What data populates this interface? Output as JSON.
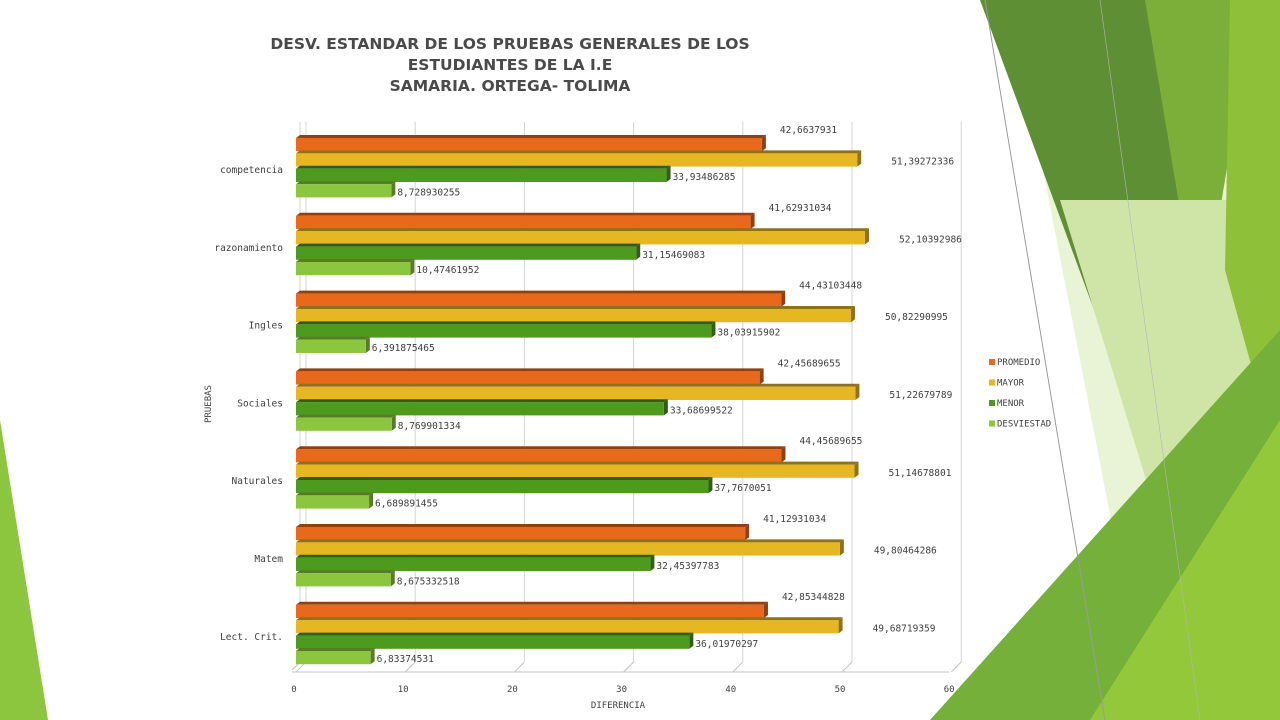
{
  "slide": {
    "title_line1": "DESV. ESTANDAR DE LOS PRUEBAS GENERALES DE LOS ESTUDIANTES DE LA I.E",
    "title_line2": "SAMARIA. ORTEGA- TOLIMA"
  },
  "colors": {
    "PROMEDIO": "#e8691c",
    "MAYOR": "#e6b623",
    "MENOR": "#4e9a1e",
    "DESVIESTAD": "#8cc63f",
    "deco_light_green": "#9bc83c",
    "deco_dark_green": "#5d8f2f"
  },
  "chart_data": {
    "type": "bar",
    "orientation": "horizontal",
    "title": "DESV. ESTANDAR DE LOS PRUEBAS GENERALES DE LOS ESTUDIANTES DE LA I.E SAMARIA. ORTEGA- TOLIMA",
    "xlabel": "DIFERENCIA",
    "ylabel": "PRUEBAS",
    "xlim": [
      0,
      60
    ],
    "xticks": [
      "0",
      "10",
      "20",
      "30",
      "40",
      "50",
      "60"
    ],
    "grid": true,
    "legend_position": "right",
    "categories": [
      "competencia",
      "razonamiento",
      "Ingles",
      "Sociales",
      "Naturales",
      "Matem",
      "Lect. Crit."
    ],
    "series": [
      {
        "name": "PROMEDIO",
        "values": [
          42.6637931,
          41.62931034,
          44.43103448,
          42.45689655,
          44.45689655,
          41.12931034,
          42.85344828
        ],
        "labels": [
          "42,6637931",
          "41,62931034",
          "44,43103448",
          "42,45689655",
          "44,45689655",
          "41,12931034",
          "42,85344828"
        ]
      },
      {
        "name": "MAYOR",
        "values": [
          51.39272336,
          52.10392986,
          50.82290995,
          51.22679789,
          51.14678801,
          49.80464286,
          49.68719359
        ],
        "labels": [
          "51,39272336",
          "52,10392986",
          "50,82290995",
          "51,22679789",
          "51,14678801",
          "49,80464286",
          "49,68719359"
        ]
      },
      {
        "name": "MENOR",
        "values": [
          33.93486285,
          31.15469083,
          38.03915902,
          33.68699522,
          37.7670051,
          32.45397783,
          36.01970297
        ],
        "labels": [
          "33,93486285",
          "31,15469083",
          "38,03915902",
          "33,68699522",
          "37,7670051",
          "32,45397783",
          "36,01970297"
        ]
      },
      {
        "name": "DESVIESTAD",
        "values": [
          8.728930255,
          10.47461952,
          6.391875465,
          8.769901334,
          6.689891455,
          8.675332518,
          6.83374531
        ],
        "labels": [
          "8,728930255",
          "10,47461952",
          "6,391875465",
          "8,769901334",
          "6,689891455",
          "8,675332518",
          "6,83374531"
        ]
      }
    ]
  }
}
